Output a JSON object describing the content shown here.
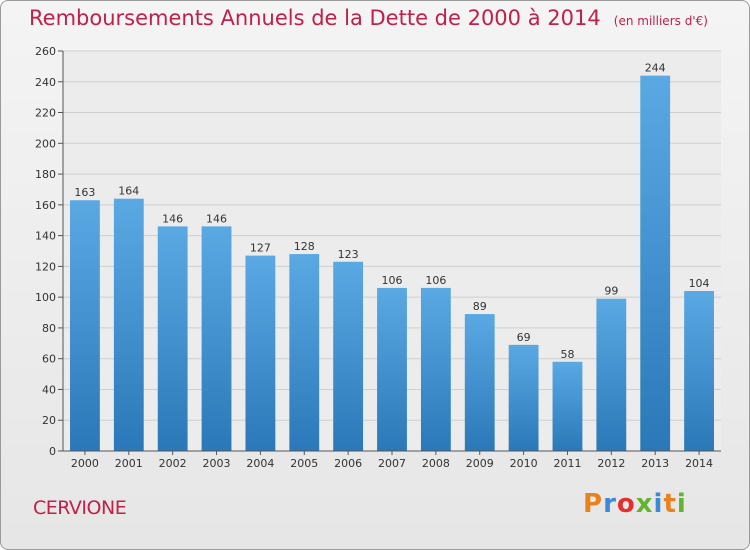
{
  "chart_data": {
    "type": "bar",
    "title": "Remboursements Annuels de la Dette de 2000 à 2014",
    "subtitle": "(en milliers d'€)",
    "categories": [
      "2000",
      "2001",
      "2002",
      "2003",
      "2004",
      "2005",
      "2006",
      "2007",
      "2008",
      "2009",
      "2010",
      "2011",
      "2012",
      "2013",
      "2014"
    ],
    "values": [
      163,
      164,
      146,
      146,
      127,
      128,
      123,
      106,
      106,
      89,
      69,
      58,
      99,
      244,
      104
    ],
    "ylim": [
      0,
      260
    ],
    "yticks": [
      0,
      20,
      40,
      60,
      80,
      100,
      120,
      140,
      160,
      180,
      200,
      220,
      240,
      260
    ],
    "grid": true,
    "bar_color_top": "#5aa9e3",
    "bar_color_bottom": "#2b78b8"
  },
  "footer": {
    "city": "CERVIONE",
    "logo_letters": [
      "P",
      "r",
      "o",
      "x",
      "i",
      "t",
      "i"
    ],
    "logo_colors": [
      "#e8821e",
      "#3a8ad4",
      "#e2312d",
      "#62b32e",
      "#3a8ad4",
      "#e8821e",
      "#62b32e"
    ]
  }
}
